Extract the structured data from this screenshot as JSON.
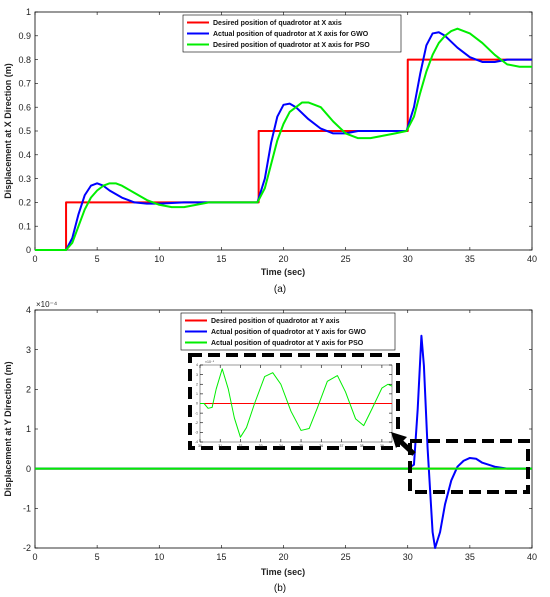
{
  "chart_data": [
    {
      "type": "line",
      "caption": "(a)",
      "xlabel": "Time (sec)",
      "ylabel": "Displacement at X Direction (m)",
      "xlim": [
        0,
        40
      ],
      "ylim": [
        0,
        1
      ],
      "xticks": [
        "0",
        "5",
        "10",
        "15",
        "20",
        "25",
        "30",
        "35",
        "40"
      ],
      "yticks": [
        "0",
        "0.1",
        "0.2",
        "0.3",
        "0.4",
        "0.5",
        "0.6",
        "0.7",
        "0.8",
        "0.9",
        "1"
      ],
      "legend_position": "top-left",
      "series": [
        {
          "name": "Desired position of quadrotor at X axis",
          "color": "#ff0000",
          "points": [
            [
              0,
              0
            ],
            [
              2.5,
              0
            ],
            [
              2.5,
              0.2
            ],
            [
              18,
              0.2
            ],
            [
              18,
              0.5
            ],
            [
              30,
              0.5
            ],
            [
              30,
              0.8
            ],
            [
              40,
              0.8
            ]
          ]
        },
        {
          "name": "Actual position of quadrotor at X axis for GWO",
          "color": "#0000ff",
          "points": [
            [
              0,
              0
            ],
            [
              2.5,
              0
            ],
            [
              3,
              0.05
            ],
            [
              3.5,
              0.15
            ],
            [
              4,
              0.23
            ],
            [
              4.5,
              0.27
            ],
            [
              5,
              0.28
            ],
            [
              5.5,
              0.27
            ],
            [
              6,
              0.25
            ],
            [
              7,
              0.22
            ],
            [
              8,
              0.2
            ],
            [
              9,
              0.195
            ],
            [
              10,
              0.195
            ],
            [
              12,
              0.2
            ],
            [
              14,
              0.2
            ],
            [
              16,
              0.2
            ],
            [
              17.9,
              0.2
            ],
            [
              18.5,
              0.3
            ],
            [
              19,
              0.45
            ],
            [
              19.5,
              0.56
            ],
            [
              20,
              0.61
            ],
            [
              20.5,
              0.615
            ],
            [
              21,
              0.6
            ],
            [
              22,
              0.55
            ],
            [
              23,
              0.51
            ],
            [
              24,
              0.49
            ],
            [
              25,
              0.49
            ],
            [
              26,
              0.5
            ],
            [
              28,
              0.5
            ],
            [
              29.9,
              0.5
            ],
            [
              30.5,
              0.6
            ],
            [
              31,
              0.74
            ],
            [
              31.5,
              0.86
            ],
            [
              32,
              0.91
            ],
            [
              32.5,
              0.915
            ],
            [
              33,
              0.9
            ],
            [
              34,
              0.85
            ],
            [
              35,
              0.81
            ],
            [
              36,
              0.79
            ],
            [
              37,
              0.79
            ],
            [
              38,
              0.8
            ],
            [
              40,
              0.8
            ]
          ]
        },
        {
          "name": "Desired position of quadrotor at X axis for PSO",
          "color": "#00ee00",
          "points": [
            [
              0,
              0
            ],
            [
              2.5,
              0
            ],
            [
              3,
              0.03
            ],
            [
              3.5,
              0.1
            ],
            [
              4,
              0.17
            ],
            [
              4.5,
              0.22
            ],
            [
              5,
              0.25
            ],
            [
              5.5,
              0.27
            ],
            [
              6,
              0.28
            ],
            [
              6.5,
              0.28
            ],
            [
              7,
              0.27
            ],
            [
              8,
              0.24
            ],
            [
              9,
              0.21
            ],
            [
              10,
              0.19
            ],
            [
              11,
              0.18
            ],
            [
              12,
              0.18
            ],
            [
              13,
              0.19
            ],
            [
              14,
              0.2
            ],
            [
              15,
              0.2
            ],
            [
              16,
              0.2
            ],
            [
              17.9,
              0.2
            ],
            [
              18.5,
              0.26
            ],
            [
              19,
              0.36
            ],
            [
              19.5,
              0.46
            ],
            [
              20,
              0.53
            ],
            [
              20.5,
              0.58
            ],
            [
              21,
              0.6
            ],
            [
              21.5,
              0.62
            ],
            [
              22,
              0.62
            ],
            [
              23,
              0.6
            ],
            [
              24,
              0.54
            ],
            [
              25,
              0.49
            ],
            [
              26,
              0.47
            ],
            [
              27,
              0.47
            ],
            [
              28,
              0.48
            ],
            [
              29,
              0.49
            ],
            [
              29.9,
              0.5
            ],
            [
              30.5,
              0.56
            ],
            [
              31,
              0.66
            ],
            [
              31.5,
              0.75
            ],
            [
              32,
              0.82
            ],
            [
              32.5,
              0.87
            ],
            [
              33,
              0.9
            ],
            [
              33.5,
              0.92
            ],
            [
              34,
              0.93
            ],
            [
              35,
              0.91
            ],
            [
              36,
              0.87
            ],
            [
              37,
              0.82
            ],
            [
              38,
              0.78
            ],
            [
              39,
              0.77
            ],
            [
              40,
              0.77
            ]
          ]
        }
      ]
    },
    {
      "type": "line",
      "caption": "(b)",
      "xlabel": "Time (sec)",
      "ylabel": "Displacement at Y Direction (m)",
      "y_exponent": "×10⁻⁴",
      "xlim": [
        0,
        40
      ],
      "ylim": [
        -2,
        4
      ],
      "xticks": [
        "0",
        "5",
        "10",
        "15",
        "20",
        "25",
        "30",
        "35",
        "40"
      ],
      "yticks": [
        "-2",
        "-1",
        "0",
        "1",
        "2",
        "3",
        "4"
      ],
      "legend_position": "top-left",
      "series": [
        {
          "name": "Desired position of quadrotor at Y axis",
          "color": "#ff0000",
          "points": [
            [
              0,
              0
            ],
            [
              40,
              0
            ]
          ]
        },
        {
          "name": "Actual position of quadrotor at Y axis for GWO",
          "color": "#0000ff",
          "points": [
            [
              0,
              0
            ],
            [
              30,
              0
            ],
            [
              30.5,
              0.1
            ],
            [
              30.8,
              1.5
            ],
            [
              31.1,
              3.35
            ],
            [
              31.3,
              2.6
            ],
            [
              31.6,
              0.5
            ],
            [
              32,
              -1.6
            ],
            [
              32.2,
              -2
            ],
            [
              32.6,
              -1.6
            ],
            [
              33,
              -0.9
            ],
            [
              33.5,
              -0.3
            ],
            [
              34,
              0.05
            ],
            [
              34.5,
              0.2
            ],
            [
              35,
              0.27
            ],
            [
              35.5,
              0.25
            ],
            [
              36,
              0.15
            ],
            [
              37,
              0.05
            ],
            [
              38,
              0
            ],
            [
              40,
              0
            ]
          ]
        },
        {
          "name": "Actual position of quadrotor at Y axis for PSO",
          "color": "#00ee00",
          "points": [
            [
              0,
              0
            ],
            [
              40,
              0
            ]
          ]
        }
      ],
      "inset": {
        "xticks": [
          "30",
          "31",
          "32",
          "33",
          "34",
          "35",
          "36",
          "37",
          "38",
          "39"
        ],
        "yticks": [
          "-4",
          "-3",
          "-2",
          "-1",
          "0",
          "1",
          "2",
          "3",
          "4"
        ],
        "y_exponent": "×10⁻⁵",
        "xlim": [
          30,
          39.5
        ],
        "ylim": [
          -4,
          4
        ],
        "series": [
          {
            "name": "Desired position of quadrotor at Y axis",
            "color": "#ff0000",
            "points": [
              [
                30,
                0
              ],
              [
                39.5,
                0
              ]
            ]
          },
          {
            "name": "Actual position of quadrotor at Y axis for PSO",
            "color": "#00ee00",
            "points": [
              [
                30,
                0
              ],
              [
                30.2,
                0
              ],
              [
                30.4,
                -0.5
              ],
              [
                30.6,
                -0.4
              ],
              [
                30.8,
                1.5
              ],
              [
                31.1,
                3.6
              ],
              [
                31.4,
                1.5
              ],
              [
                31.7,
                -1.5
              ],
              [
                32,
                -3.5
              ],
              [
                32.3,
                -2.5
              ],
              [
                32.7,
                0
              ],
              [
                33.2,
                2.8
              ],
              [
                33.6,
                3.2
              ],
              [
                34,
                2
              ],
              [
                34.5,
                -0.8
              ],
              [
                35,
                -2.8
              ],
              [
                35.4,
                -2.6
              ],
              [
                35.8,
                -0.5
              ],
              [
                36.3,
                2.3
              ],
              [
                36.8,
                2.9
              ],
              [
                37.2,
                1.2
              ],
              [
                37.7,
                -1.6
              ],
              [
                38.1,
                -2.3
              ],
              [
                38.5,
                -0.6
              ],
              [
                39,
                1.6
              ],
              [
                39.3,
                2
              ],
              [
                39.5,
                1.8
              ]
            ]
          }
        ]
      }
    }
  ]
}
